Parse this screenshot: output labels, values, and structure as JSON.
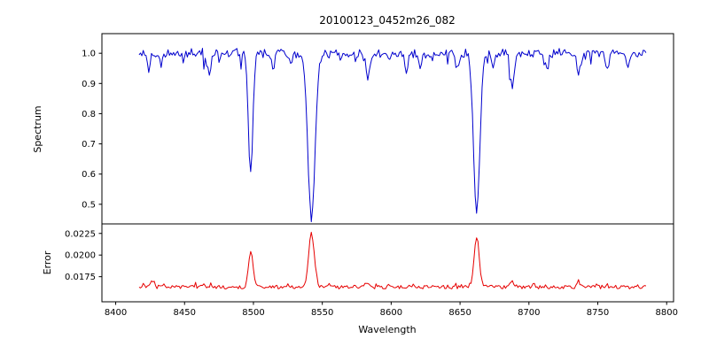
{
  "figure": {
    "title": "20100123_0452m26_082",
    "xlabel": "Wavelength",
    "background": "#ffffff",
    "axis_color": "#000000"
  },
  "xticks": {
    "values": [
      8400,
      8450,
      8500,
      8550,
      8600,
      8650,
      8700,
      8750,
      8800
    ],
    "labels": [
      "8400",
      "8450",
      "8500",
      "8550",
      "8600",
      "8650",
      "8700",
      "8750",
      "8800"
    ]
  },
  "chart_data": [
    {
      "type": "line",
      "name": "spectrum",
      "ylabel": "Spectrum",
      "color": "#0000cd",
      "xlim": [
        8390,
        8805
      ],
      "ylim": [
        0.435,
        1.065
      ],
      "yticks": {
        "values": [
          1.0,
          0.9,
          0.8,
          0.7,
          0.6,
          0.5
        ],
        "labels": [
          "1.0",
          "0.9",
          "0.8",
          "0.7",
          "0.6",
          "0.5"
        ]
      },
      "x_start": 8417,
      "x_end": 8785,
      "x_step": 1,
      "continuum": 1.0,
      "noise_amplitude": 0.012,
      "noise_seed": 20100123,
      "absorption_lines": [
        {
          "center": 8498.0,
          "depth": 0.4,
          "sigma": 1.6
        },
        {
          "center": 8542.1,
          "depth": 0.55,
          "sigma": 2.6
        },
        {
          "center": 8662.1,
          "depth": 0.52,
          "sigma": 2.3
        },
        {
          "center": 8424.0,
          "depth": 0.05,
          "sigma": 1.2
        },
        {
          "center": 8433.0,
          "depth": 0.04,
          "sigma": 1.0
        },
        {
          "center": 8468.0,
          "depth": 0.07,
          "sigma": 1.3
        },
        {
          "center": 8514.0,
          "depth": 0.05,
          "sigma": 1.2
        },
        {
          "center": 8527.0,
          "depth": 0.04,
          "sigma": 1.0
        },
        {
          "center": 8583.0,
          "depth": 0.09,
          "sigma": 1.4
        },
        {
          "center": 8611.0,
          "depth": 0.06,
          "sigma": 1.2
        },
        {
          "center": 8621.0,
          "depth": 0.05,
          "sigma": 1.0
        },
        {
          "center": 8648.0,
          "depth": 0.05,
          "sigma": 1.2
        },
        {
          "center": 8674.0,
          "depth": 0.05,
          "sigma": 1.0
        },
        {
          "center": 8688.0,
          "depth": 0.11,
          "sigma": 1.3
        },
        {
          "center": 8713.0,
          "depth": 0.05,
          "sigma": 1.2
        },
        {
          "center": 8736.0,
          "depth": 0.07,
          "sigma": 1.3
        },
        {
          "center": 8757.0,
          "depth": 0.05,
          "sigma": 1.2
        },
        {
          "center": 8772.0,
          "depth": 0.04,
          "sigma": 1.0
        }
      ]
    },
    {
      "type": "line",
      "name": "error",
      "ylabel": "Error",
      "color": "#e60000",
      "xlim": [
        8390,
        8805
      ],
      "ylim": [
        0.0146,
        0.0236
      ],
      "yticks": {
        "values": [
          0.0225,
          0.02,
          0.0175
        ],
        "labels": [
          "0.0225",
          "0.0200",
          "0.0175"
        ]
      },
      "x_start": 8417,
      "x_end": 8785,
      "x_step": 1,
      "baseline": 0.0163,
      "noise_amplitude": 0.00022,
      "noise_seed": 452,
      "peaks": [
        {
          "center": 8498.0,
          "height": 0.0042,
          "sigma": 1.6
        },
        {
          "center": 8542.1,
          "height": 0.0063,
          "sigma": 2.0
        },
        {
          "center": 8662.1,
          "height": 0.0058,
          "sigma": 1.8
        },
        {
          "center": 8427.0,
          "height": 0.0007,
          "sigma": 1.2
        },
        {
          "center": 8583.0,
          "height": 0.0006,
          "sigma": 1.5
        },
        {
          "center": 8688.0,
          "height": 0.0007,
          "sigma": 1.3
        },
        {
          "center": 8736.0,
          "height": 0.0005,
          "sigma": 1.2
        }
      ]
    }
  ]
}
